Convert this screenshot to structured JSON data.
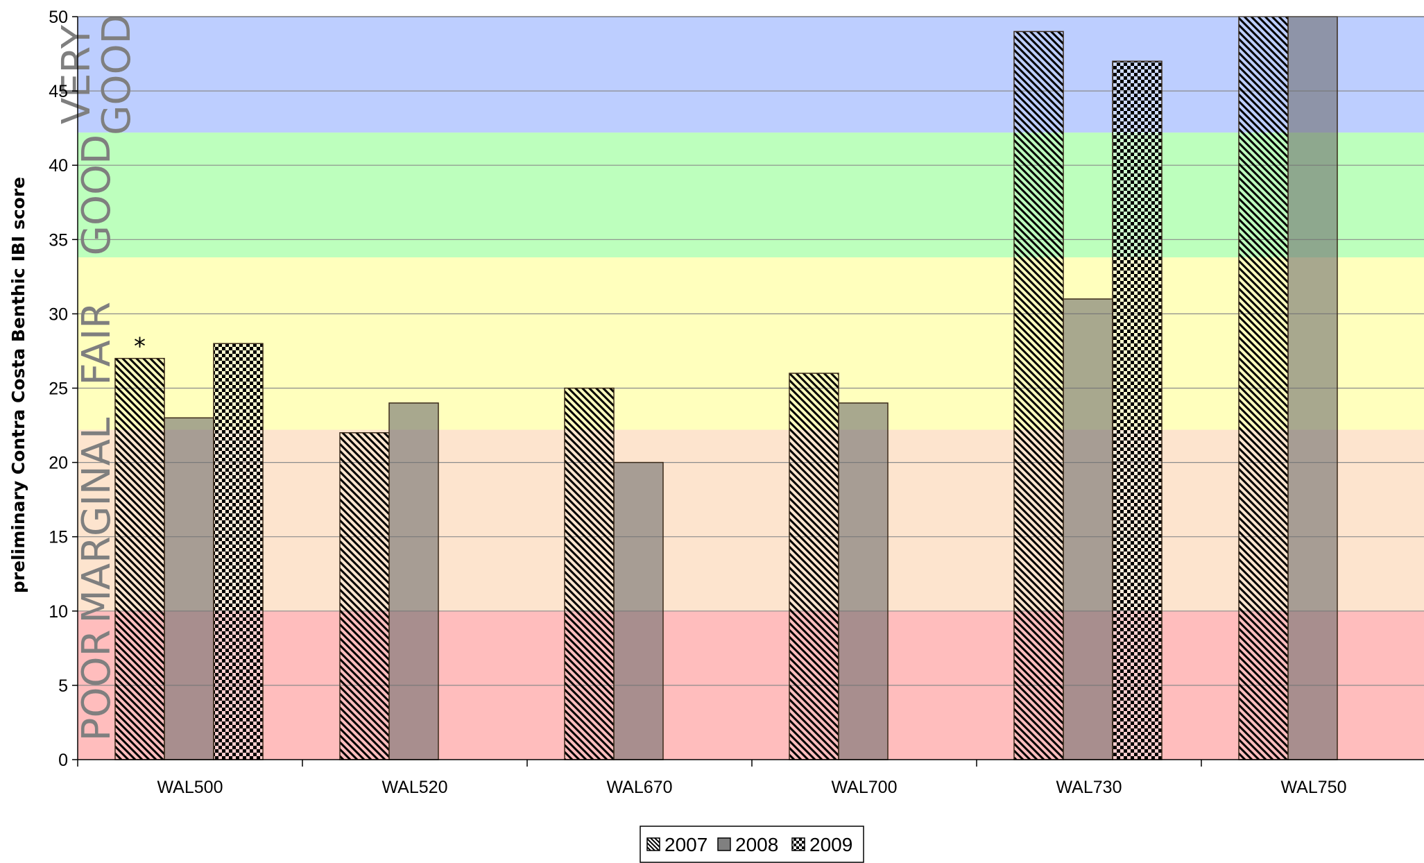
{
  "chart_data": {
    "type": "bar",
    "ylabel": "preliminary Contra Costa Benthic IBI score",
    "xlabel": "",
    "ylim": [
      0,
      50
    ],
    "yticks": [
      0,
      5,
      10,
      15,
      20,
      25,
      30,
      35,
      40,
      45,
      50
    ],
    "grid": true,
    "legend_position": "bottom-center",
    "categories": [
      "WAL500",
      "WAL520",
      "WAL670",
      "WAL700",
      "WAL730",
      "WAL750"
    ],
    "series": [
      {
        "name": "2007",
        "pattern": "diagonal-hatch",
        "values": [
          27,
          22,
          25,
          26,
          49,
          50
        ]
      },
      {
        "name": "2008",
        "pattern": "solid-gray",
        "values": [
          23,
          24,
          20,
          24,
          31,
          50
        ]
      },
      {
        "name": "2009",
        "pattern": "checkerboard",
        "values": [
          28,
          null,
          null,
          null,
          47,
          null
        ]
      }
    ],
    "bands": [
      {
        "label": "POOR",
        "from": 0,
        "to": 10,
        "color": "#ff9999"
      },
      {
        "label": "MARGINAL",
        "from": 10,
        "to": 22.2,
        "color": "#fcd5b4"
      },
      {
        "label": "FAIR",
        "from": 22.2,
        "to": 33.8,
        "color": "#ffff99"
      },
      {
        "label": "GOOD",
        "from": 33.8,
        "to": 42.2,
        "color": "#99ff99"
      },
      {
        "label": "VERY GOOD",
        "from": 42.2,
        "to": 50,
        "color": "#99b3ff"
      }
    ],
    "annotations": [
      {
        "text": "*",
        "category": "WAL500",
        "series": "2007"
      }
    ]
  }
}
